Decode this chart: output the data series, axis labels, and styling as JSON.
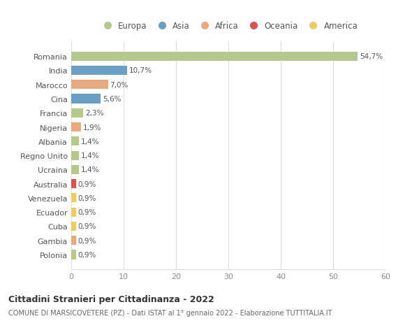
{
  "countries": [
    "Romania",
    "India",
    "Marocco",
    "Cina",
    "Francia",
    "Nigeria",
    "Albania",
    "Regno Unito",
    "Ucraina",
    "Australia",
    "Venezuela",
    "Ecuador",
    "Cuba",
    "Gambia",
    "Polonia"
  ],
  "values": [
    54.7,
    10.7,
    7.0,
    5.6,
    2.3,
    1.9,
    1.4,
    1.4,
    1.4,
    0.9,
    0.9,
    0.9,
    0.9,
    0.9,
    0.9
  ],
  "labels": [
    "54,7%",
    "10,7%",
    "7,0%",
    "5,6%",
    "2,3%",
    "1,9%",
    "1,4%",
    "1,4%",
    "1,4%",
    "0,9%",
    "0,9%",
    "0,9%",
    "0,9%",
    "0,9%",
    "0,9%"
  ],
  "colors": [
    "#b5c98e",
    "#6a9ec5",
    "#e8a97e",
    "#6a9ec5",
    "#b5c98e",
    "#e8a97e",
    "#b5c98e",
    "#b5c98e",
    "#b5c98e",
    "#d9534f",
    "#f0c96b",
    "#f0c96b",
    "#f0c96b",
    "#e8a97e",
    "#b5c98e"
  ],
  "continents": [
    "Europa",
    "Asia",
    "Africa",
    "Oceania",
    "America"
  ],
  "legend_colors": [
    "#b5c98e",
    "#6a9ec5",
    "#e8a97e",
    "#d9534f",
    "#f0c96b"
  ],
  "xlim": [
    0,
    60
  ],
  "xticks": [
    0,
    10,
    20,
    30,
    40,
    50,
    60
  ],
  "title": "Cittadini Stranieri per Cittadinanza - 2022",
  "subtitle": "COMUNE DI MARSICOVETERE (PZ) - Dati ISTAT al 1° gennaio 2022 - Elaborazione TUTTITALIA.IT",
  "background_color": "#ffffff",
  "grid_color": "#dddddd"
}
